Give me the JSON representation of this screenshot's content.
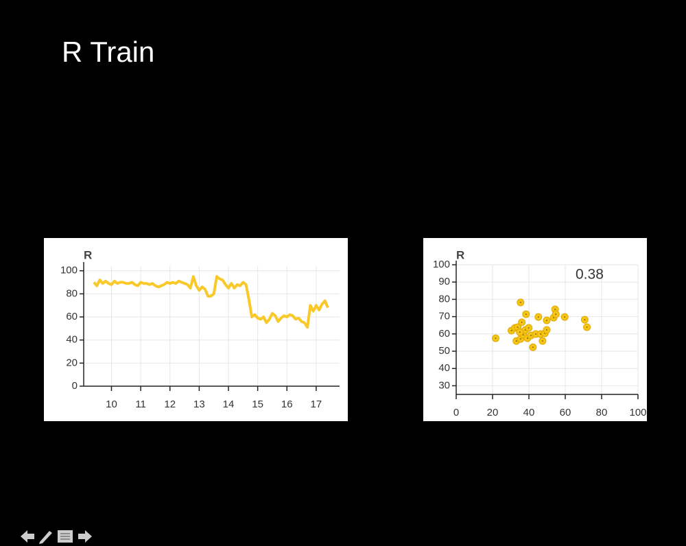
{
  "title": "R Train",
  "chart_data": [
    {
      "type": "line",
      "title": "R",
      "color": "#f9c929",
      "grid": true,
      "x": [
        9.4,
        9.5,
        9.6,
        9.7,
        9.8,
        9.9,
        10.0,
        10.1,
        10.2,
        10.3,
        10.4,
        10.5,
        10.6,
        10.7,
        10.8,
        10.9,
        11.0,
        11.1,
        11.2,
        11.3,
        11.4,
        11.5,
        11.6,
        11.7,
        11.8,
        11.9,
        12.0,
        12.1,
        12.2,
        12.3,
        12.4,
        12.5,
        12.6,
        12.7,
        12.8,
        12.9,
        13.0,
        13.1,
        13.2,
        13.3,
        13.4,
        13.5,
        13.6,
        13.7,
        13.8,
        13.9,
        14.0,
        14.1,
        14.2,
        14.3,
        14.4,
        14.5,
        14.6,
        14.7,
        14.8,
        14.9,
        15.0,
        15.1,
        15.2,
        15.3,
        15.4,
        15.5,
        15.6,
        15.7,
        15.8,
        15.9,
        16.0,
        16.1,
        16.2,
        16.3,
        16.4,
        16.5,
        16.6,
        16.7,
        16.8,
        16.9,
        17.0,
        17.1,
        17.2,
        17.3,
        17.4
      ],
      "values": [
        90,
        87,
        92,
        89,
        91,
        89,
        88,
        91,
        89,
        90,
        90,
        89,
        89,
        90,
        88,
        87,
        90,
        89,
        89,
        88,
        89,
        87,
        86,
        87,
        88,
        90,
        89,
        90,
        89,
        91,
        90,
        89,
        88,
        85,
        95,
        87,
        83,
        86,
        84,
        78,
        78,
        80,
        95,
        93,
        92,
        88,
        85,
        89,
        85,
        88,
        87,
        90,
        88,
        75,
        60,
        62,
        59,
        58,
        60,
        55,
        58,
        63,
        61,
        56,
        59,
        61,
        60,
        62,
        61,
        58,
        59,
        56,
        55,
        51,
        70,
        65,
        70,
        66,
        71,
        74,
        68
      ],
      "xlim": [
        9.05,
        17.8
      ],
      "xticks": [
        10,
        11,
        12,
        13,
        14,
        15,
        16,
        17
      ],
      "ylim": [
        0,
        104
      ],
      "yticks": [
        0,
        20,
        40,
        60,
        80,
        100
      ]
    },
    {
      "type": "scatter",
      "title": "R",
      "annotation": "0.38",
      "color": "#f5c518",
      "grid": true,
      "x": [
        21.7,
        35.4,
        38.4,
        30.4,
        32.3,
        33.8,
        33.1,
        35.4,
        36.9,
        38.0,
        39.9,
        39.2,
        41.1,
        42.2,
        43.7,
        45.2,
        46.4,
        47.5,
        48.7,
        49.8,
        49.8,
        53.6,
        54.4,
        54.8,
        59.7,
        70.7,
        71.9,
        36.1,
        35.0
      ],
      "values": [
        57.5,
        78.2,
        71.4,
        61.9,
        63.5,
        63.9,
        55.9,
        57.1,
        59.5,
        62.3,
        63.5,
        57.5,
        59.1,
        52.3,
        59.9,
        69.8,
        59.9,
        55.9,
        60.3,
        62.3,
        67.8,
        69.4,
        74.2,
        71.4,
        69.8,
        68.2,
        63.9,
        66.7,
        61
      ],
      "xlim": [
        0,
        100
      ],
      "xticks": [
        0,
        20,
        40,
        60,
        80,
        100
      ],
      "ylim": [
        25,
        100
      ],
      "yticks": [
        30,
        40,
        50,
        60,
        70,
        80,
        90,
        100
      ]
    }
  ]
}
